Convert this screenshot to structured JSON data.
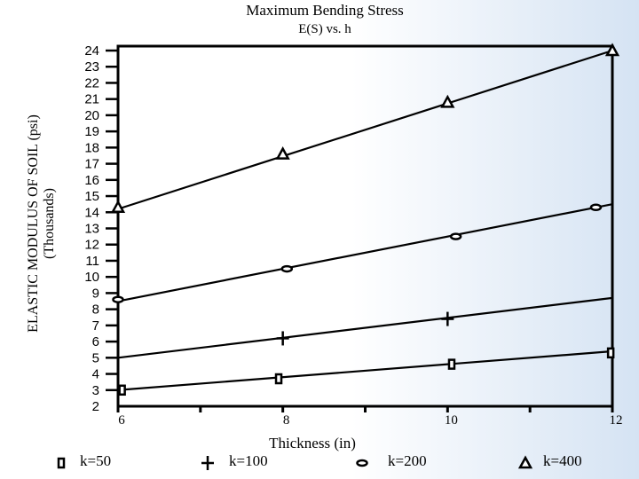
{
  "chart_data": {
    "type": "line",
    "title": "Maximum Bending Stress",
    "subtitle": "E(S) vs. h",
    "xlabel": "Thickness (in)",
    "ylabel": "ELASTIC MODULUS OF SOIL (psi)",
    "ylabel_unit": "(Thousands)",
    "xlim": [
      6,
      12
    ],
    "ylim": [
      2,
      24
    ],
    "x_ticks": [
      6,
      8,
      10,
      12
    ],
    "y_ticks": [
      2,
      3,
      4,
      5,
      6,
      7,
      8,
      9,
      10,
      11,
      12,
      13,
      14,
      15,
      16,
      17,
      18,
      19,
      20,
      21,
      22,
      23,
      24
    ],
    "series": [
      {
        "name": "k=50",
        "marker": "square",
        "line": [
          [
            6,
            3.0
          ],
          [
            12,
            5.4
          ]
        ],
        "markers": [
          [
            6.05,
            3.0
          ],
          [
            7.95,
            3.7
          ],
          [
            10.05,
            4.6
          ],
          [
            11.98,
            5.3
          ]
        ]
      },
      {
        "name": "k=100",
        "marker": "plus",
        "line": [
          [
            6,
            5.0
          ],
          [
            12,
            8.7
          ]
        ],
        "markers": [
          [
            8.0,
            6.2
          ],
          [
            10.0,
            7.4
          ]
        ]
      },
      {
        "name": "k=200",
        "marker": "ellipse",
        "line": [
          [
            6,
            8.5
          ],
          [
            12,
            14.5
          ]
        ],
        "markers": [
          [
            6.0,
            8.6
          ],
          [
            8.05,
            10.5
          ],
          [
            10.1,
            12.5
          ],
          [
            11.8,
            14.3
          ]
        ]
      },
      {
        "name": "k=400",
        "marker": "triangle",
        "line": [
          [
            6,
            14.2
          ],
          [
            12,
            24.0
          ]
        ],
        "markers": [
          [
            6.0,
            14.3
          ],
          [
            8.0,
            17.6
          ],
          [
            10.0,
            20.8
          ],
          [
            12.0,
            24.0
          ]
        ]
      }
    ]
  }
}
